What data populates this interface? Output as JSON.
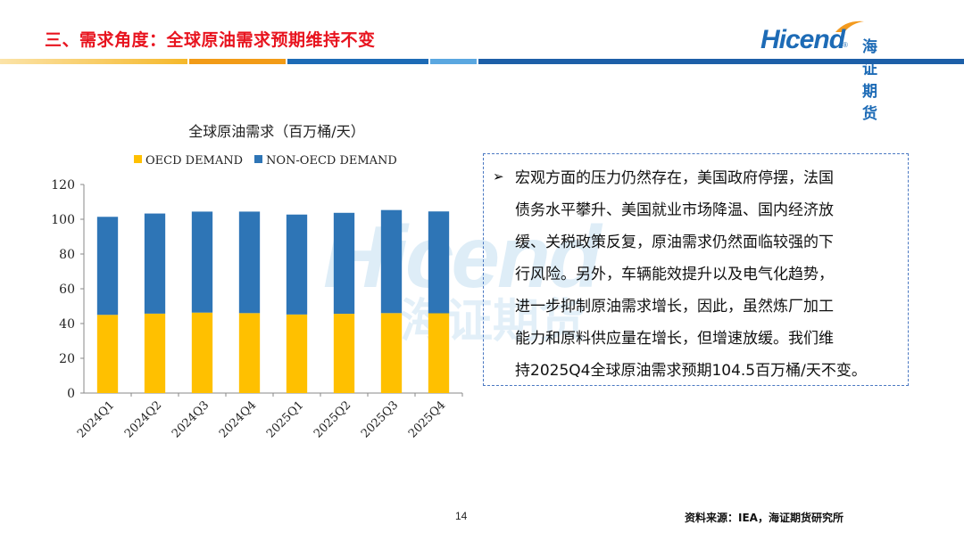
{
  "header": {
    "title": "三、需求角度：全球原油需求预期维持不变",
    "logo_en": "Hicend",
    "logo_reg": "®",
    "logo_cn": "海证期货"
  },
  "colors": {
    "title_red": "#e8141f",
    "brand_blue": "#1d6bb6",
    "oecd": "#ffc000",
    "non_oecd": "#2e75b6",
    "stripe_orange": "#f5b82a",
    "stripe_blue": "#1d6bb6"
  },
  "watermark": {
    "en": "Hicend",
    "cn": "海证期货"
  },
  "chart_data": {
    "type": "bar",
    "stacked": true,
    "title": "全球原油需求（百万桶/天）",
    "xlabel": "",
    "ylabel": "",
    "categories": [
      "2024Q1",
      "2024Q2",
      "2024Q3",
      "2024Q4",
      "2025Q1",
      "2025Q2",
      "2025Q3",
      "2025Q4"
    ],
    "series": [
      {
        "name": "OECD DEMAND",
        "color": "#ffc000",
        "values": [
          45.0,
          45.7,
          46.3,
          46.0,
          45.2,
          45.6,
          46.0,
          45.9
        ]
      },
      {
        "name": "NON-OECD DEMAND",
        "color": "#2e75b6",
        "values": [
          56.4,
          57.6,
          58.1,
          58.4,
          57.5,
          58.1,
          59.3,
          58.6
        ]
      }
    ],
    "ylim": [
      0,
      120
    ],
    "yticks": [
      "0",
      "20",
      "40",
      "60",
      "80",
      "100",
      "120"
    ],
    "grid": false,
    "legend": "top"
  },
  "textbox": {
    "bullet": "➢",
    "lines": [
      "宏观方面的压力仍然存在，美国政府停摆，法国",
      "债务水平攀升、美国就业市场降温、国内经济放",
      "缓、关税政策反复，原油需求仍然面临较强的下",
      "行风险。另外，车辆能效提升以及电气化趋势，",
      "进一步抑制原油需求增长，因此，虽然炼厂加工",
      "能力和原料供应量在增长，但增速放缓。我们维",
      "持2025Q4全球原油需求预期104.5百万桶/天不变。"
    ]
  },
  "footer": {
    "page_number": "14",
    "source": "资料来源：IEA，海证期货研究所"
  }
}
